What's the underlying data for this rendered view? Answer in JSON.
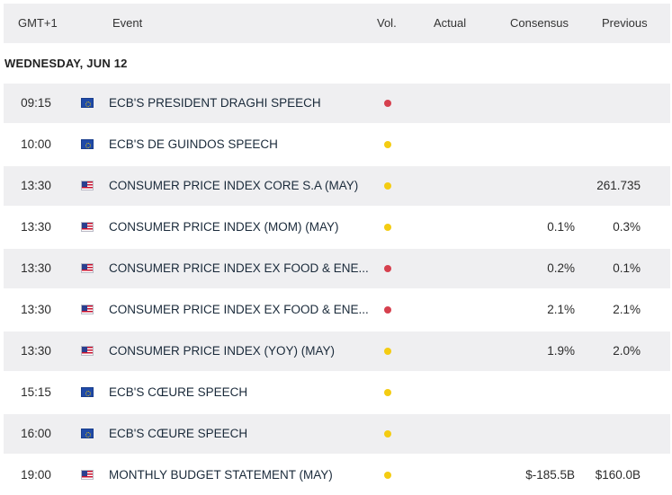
{
  "header": {
    "timezone": "GMT+1",
    "event": "Event",
    "vol": "Vol.",
    "actual": "Actual",
    "consensus": "Consensus",
    "previous": "Previous"
  },
  "day_label": "WEDNESDAY, JUN 12",
  "colors": {
    "high": "#d6404e",
    "medium": "#f4cc12"
  },
  "rows": [
    {
      "time": "09:15",
      "flag": "eu-flag-icon",
      "event": "ECB'S PRESIDENT DRAGHI SPEECH",
      "volatility": "high",
      "actual": "",
      "consensus": "",
      "previous": ""
    },
    {
      "time": "10:00",
      "flag": "eu-flag-icon",
      "event": "ECB'S DE GUINDOS SPEECH",
      "volatility": "medium",
      "actual": "",
      "consensus": "",
      "previous": ""
    },
    {
      "time": "13:30",
      "flag": "us-flag-icon",
      "event": "CONSUMER PRICE INDEX CORE S.A (MAY)",
      "volatility": "medium",
      "actual": "",
      "consensus": "",
      "previous": "261.735"
    },
    {
      "time": "13:30",
      "flag": "us-flag-icon",
      "event": "CONSUMER PRICE INDEX (MOM) (MAY)",
      "volatility": "medium",
      "actual": "",
      "consensus": "0.1%",
      "previous": "0.3%"
    },
    {
      "time": "13:30",
      "flag": "us-flag-icon",
      "event": "CONSUMER PRICE INDEX EX FOOD & ENE...",
      "volatility": "high",
      "actual": "",
      "consensus": "0.2%",
      "previous": "0.1%"
    },
    {
      "time": "13:30",
      "flag": "us-flag-icon",
      "event": "CONSUMER PRICE INDEX EX FOOD & ENE...",
      "volatility": "high",
      "actual": "",
      "consensus": "2.1%",
      "previous": "2.1%"
    },
    {
      "time": "13:30",
      "flag": "us-flag-icon",
      "event": "CONSUMER PRICE INDEX (YOY) (MAY)",
      "volatility": "medium",
      "actual": "",
      "consensus": "1.9%",
      "previous": "2.0%"
    },
    {
      "time": "15:15",
      "flag": "eu-flag-icon",
      "event": "ECB'S CŒURE SPEECH",
      "volatility": "medium",
      "actual": "",
      "consensus": "",
      "previous": ""
    },
    {
      "time": "16:00",
      "flag": "eu-flag-icon",
      "event": "ECB'S CŒURE SPEECH",
      "volatility": "medium",
      "actual": "",
      "consensus": "",
      "previous": ""
    },
    {
      "time": "19:00",
      "flag": "us-flag-icon",
      "event": "MONTHLY BUDGET STATEMENT (MAY)",
      "volatility": "medium",
      "actual": "",
      "consensus": "$-185.5B",
      "previous": "$160.0B"
    }
  ]
}
